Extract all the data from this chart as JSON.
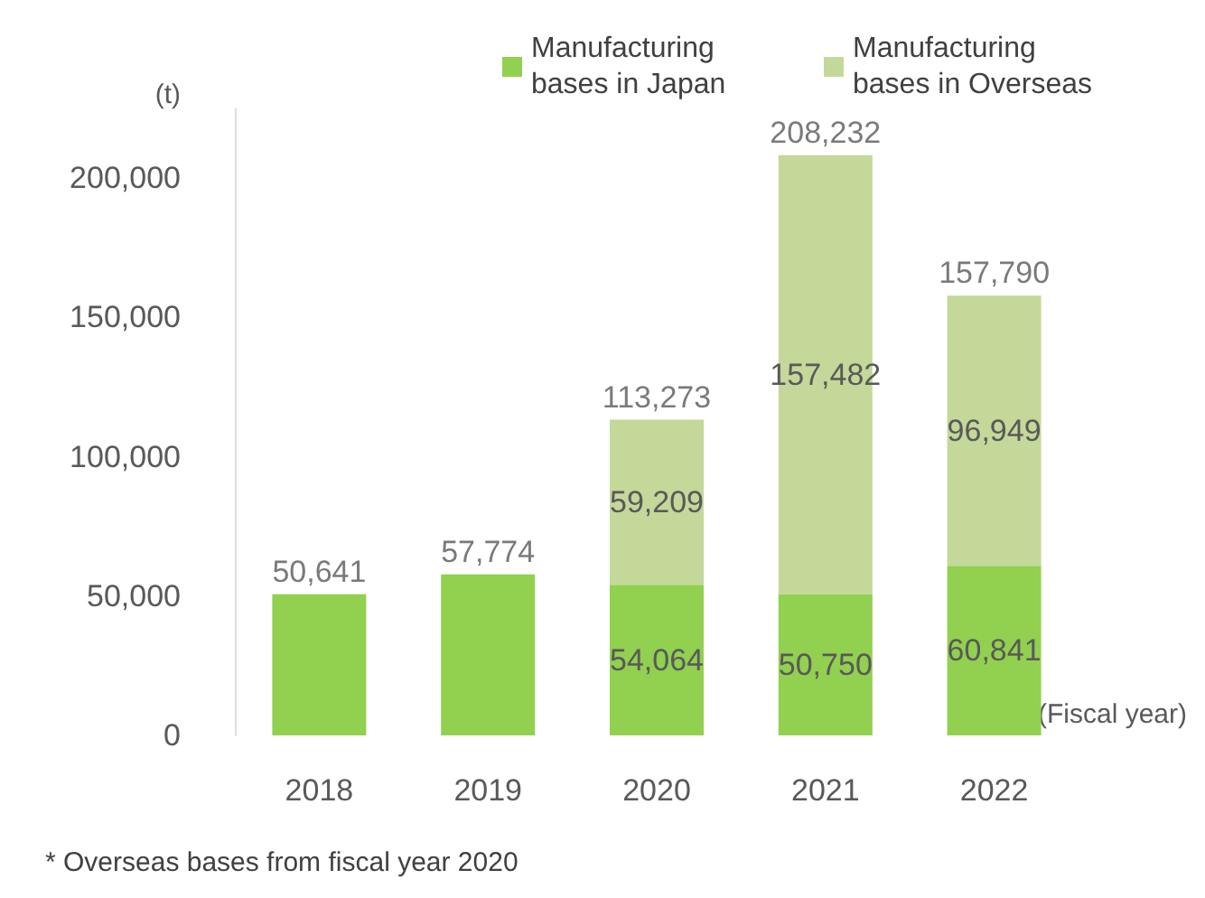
{
  "chart_data": {
    "type": "bar",
    "stacked": true,
    "ylabel": "(t)",
    "xlabel": "(Fiscal year)",
    "categories": [
      "2018",
      "2019",
      "2020",
      "2021",
      "2022"
    ],
    "series": [
      {
        "name": "Manufacturing bases in Japan",
        "color": "#92d050",
        "values": [
          50641,
          57774,
          54064,
          50750,
          60841
        ],
        "value_labels": [
          null,
          null,
          "54,064",
          "50,750",
          "60,841"
        ]
      },
      {
        "name": "Manufacturing bases in Overseas",
        "color": "#c4d89a",
        "values": [
          null,
          null,
          59209,
          157482,
          96949
        ],
        "value_labels": [
          null,
          null,
          "59,209",
          "157,482",
          "96,949"
        ]
      }
    ],
    "totals": [
      "50,641",
      "57,774",
      "113,273",
      "208,232",
      "157,790"
    ],
    "ylim": [
      0,
      225000
    ],
    "yticks": [
      0,
      {
        "value": 50000,
        "label": "50,000"
      },
      {
        "value": 100000,
        "label": "100,000"
      },
      {
        "value": 150000,
        "label": "150,000"
      },
      {
        "value": 200000,
        "label": "200,000"
      }
    ],
    "grid": false,
    "legend": "top right",
    "annotations": [
      "* Overseas bases from fiscal year 2020"
    ]
  }
}
